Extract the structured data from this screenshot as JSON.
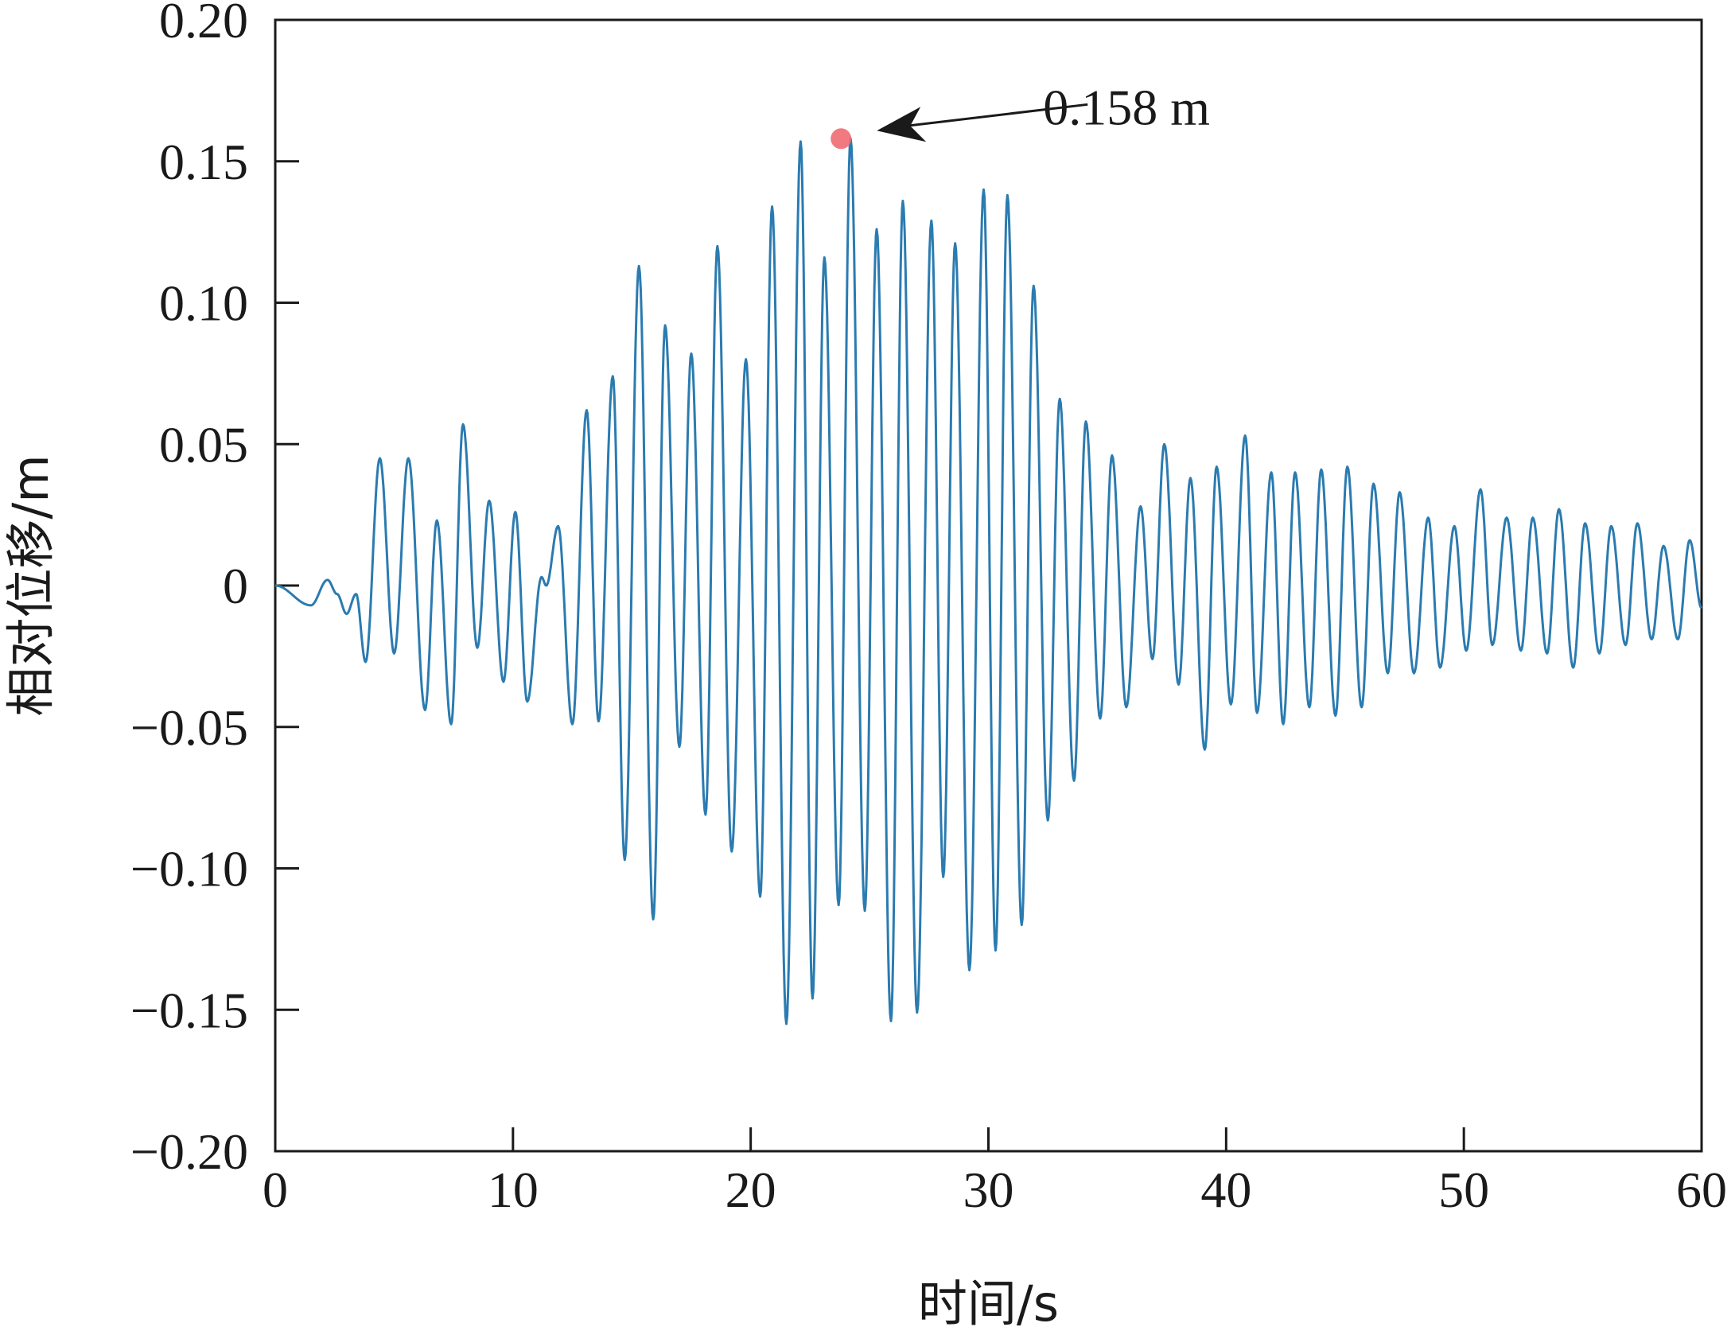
{
  "chart_data": {
    "type": "line",
    "title": "",
    "xlabel": "时间/s",
    "ylabel": "相对位移/m",
    "xlim": [
      0,
      60
    ],
    "ylim": [
      -0.2,
      0.2
    ],
    "x_ticks": [
      0,
      10,
      20,
      30,
      40,
      50,
      60
    ],
    "x_tick_labels": [
      "0",
      "10",
      "20",
      "30",
      "40",
      "50",
      "60"
    ],
    "y_ticks": [
      0.2,
      0.15,
      0.1,
      0.05,
      0,
      -0.05,
      -0.1,
      -0.15,
      -0.2
    ],
    "y_tick_labels": [
      "0.20",
      "0.15",
      "0.10",
      "0.05",
      "0",
      "−0.05",
      "−0.10",
      "−0.15",
      "−0.20"
    ],
    "grid": false,
    "line_color": "#2b7bb0",
    "series": [
      {
        "extrema": [
          [
            0,
            0
          ],
          [
            1.5,
            -0.007
          ],
          [
            2.2,
            0.002
          ],
          [
            2.6,
            -0.003
          ],
          [
            3.0,
            -0.01
          ],
          [
            3.4,
            -0.003
          ],
          [
            3.8,
            -0.027
          ],
          [
            4.4,
            0.045
          ],
          [
            5.0,
            -0.024
          ],
          [
            5.6,
            0.045
          ],
          [
            6.3,
            -0.044
          ],
          [
            6.8,
            0.023
          ],
          [
            7.4,
            -0.049
          ],
          [
            7.9,
            0.057
          ],
          [
            8.5,
            -0.022
          ],
          [
            9.0,
            0.03
          ],
          [
            9.6,
            -0.034
          ],
          [
            10.1,
            0.026
          ],
          [
            10.6,
            -0.041
          ],
          [
            11.2,
            0.003
          ],
          [
            11.4,
            0.0
          ],
          [
            11.9,
            0.021
          ],
          [
            12.5,
            -0.049
          ],
          [
            13.1,
            0.062
          ],
          [
            13.6,
            -0.048
          ],
          [
            14.2,
            0.074
          ],
          [
            14.7,
            -0.097
          ],
          [
            15.3,
            0.113
          ],
          [
            15.9,
            -0.118
          ],
          [
            16.4,
            0.092
          ],
          [
            17.0,
            -0.057
          ],
          [
            17.5,
            0.082
          ],
          [
            18.1,
            -0.081
          ],
          [
            18.6,
            0.12
          ],
          [
            19.2,
            -0.094
          ],
          [
            19.8,
            0.08
          ],
          [
            20.4,
            -0.11
          ],
          [
            20.9,
            0.134
          ],
          [
            21.5,
            -0.155
          ],
          [
            22.1,
            0.157
          ],
          [
            22.6,
            -0.146
          ],
          [
            23.1,
            0.116
          ],
          [
            23.7,
            -0.113
          ],
          [
            24.2,
            0.158
          ],
          [
            24.8,
            -0.115
          ],
          [
            25.3,
            0.126
          ],
          [
            25.9,
            -0.154
          ],
          [
            26.4,
            0.136
          ],
          [
            27.0,
            -0.151
          ],
          [
            27.6,
            0.129
          ],
          [
            28.1,
            -0.103
          ],
          [
            28.6,
            0.121
          ],
          [
            29.2,
            -0.136
          ],
          [
            29.8,
            0.14
          ],
          [
            30.3,
            -0.129
          ],
          [
            30.8,
            0.138
          ],
          [
            31.4,
            -0.12
          ],
          [
            31.9,
            0.106
          ],
          [
            32.5,
            -0.083
          ],
          [
            33.0,
            0.066
          ],
          [
            33.6,
            -0.069
          ],
          [
            34.1,
            0.058
          ],
          [
            34.7,
            -0.047
          ],
          [
            35.2,
            0.046
          ],
          [
            35.8,
            -0.043
          ],
          [
            36.4,
            0.028
          ],
          [
            36.9,
            -0.026
          ],
          [
            37.4,
            0.05
          ],
          [
            38.0,
            -0.035
          ],
          [
            38.5,
            0.038
          ],
          [
            39.1,
            -0.058
          ],
          [
            39.6,
            0.042
          ],
          [
            40.2,
            -0.042
          ],
          [
            40.8,
            0.053
          ],
          [
            41.3,
            -0.045
          ],
          [
            41.9,
            0.04
          ],
          [
            42.4,
            -0.049
          ],
          [
            42.9,
            0.04
          ],
          [
            43.5,
            -0.043
          ],
          [
            44.0,
            0.041
          ],
          [
            44.6,
            -0.046
          ],
          [
            45.1,
            0.042
          ],
          [
            45.7,
            -0.043
          ],
          [
            46.2,
            0.036
          ],
          [
            46.8,
            -0.031
          ],
          [
            47.3,
            0.033
          ],
          [
            47.9,
            -0.031
          ],
          [
            48.5,
            0.024
          ],
          [
            49.0,
            -0.029
          ],
          [
            49.6,
            0.021
          ],
          [
            50.1,
            -0.023
          ],
          [
            50.7,
            0.034
          ],
          [
            51.2,
            -0.021
          ],
          [
            51.8,
            0.024
          ],
          [
            52.4,
            -0.023
          ],
          [
            52.9,
            0.024
          ],
          [
            53.5,
            -0.024
          ],
          [
            54.0,
            0.027
          ],
          [
            54.6,
            -0.029
          ],
          [
            55.1,
            0.022
          ],
          [
            55.7,
            -0.024
          ],
          [
            56.2,
            0.021
          ],
          [
            56.8,
            -0.021
          ],
          [
            57.3,
            0.022
          ],
          [
            57.9,
            -0.019
          ],
          [
            58.4,
            0.014
          ],
          [
            59.0,
            -0.019
          ],
          [
            59.5,
            0.016
          ],
          [
            60.0,
            -0.008
          ]
        ]
      }
    ],
    "annotations": [
      {
        "text": "0.158 m",
        "x": 23.8,
        "y": 0.158,
        "marker_color": "#ef6b73"
      }
    ]
  }
}
